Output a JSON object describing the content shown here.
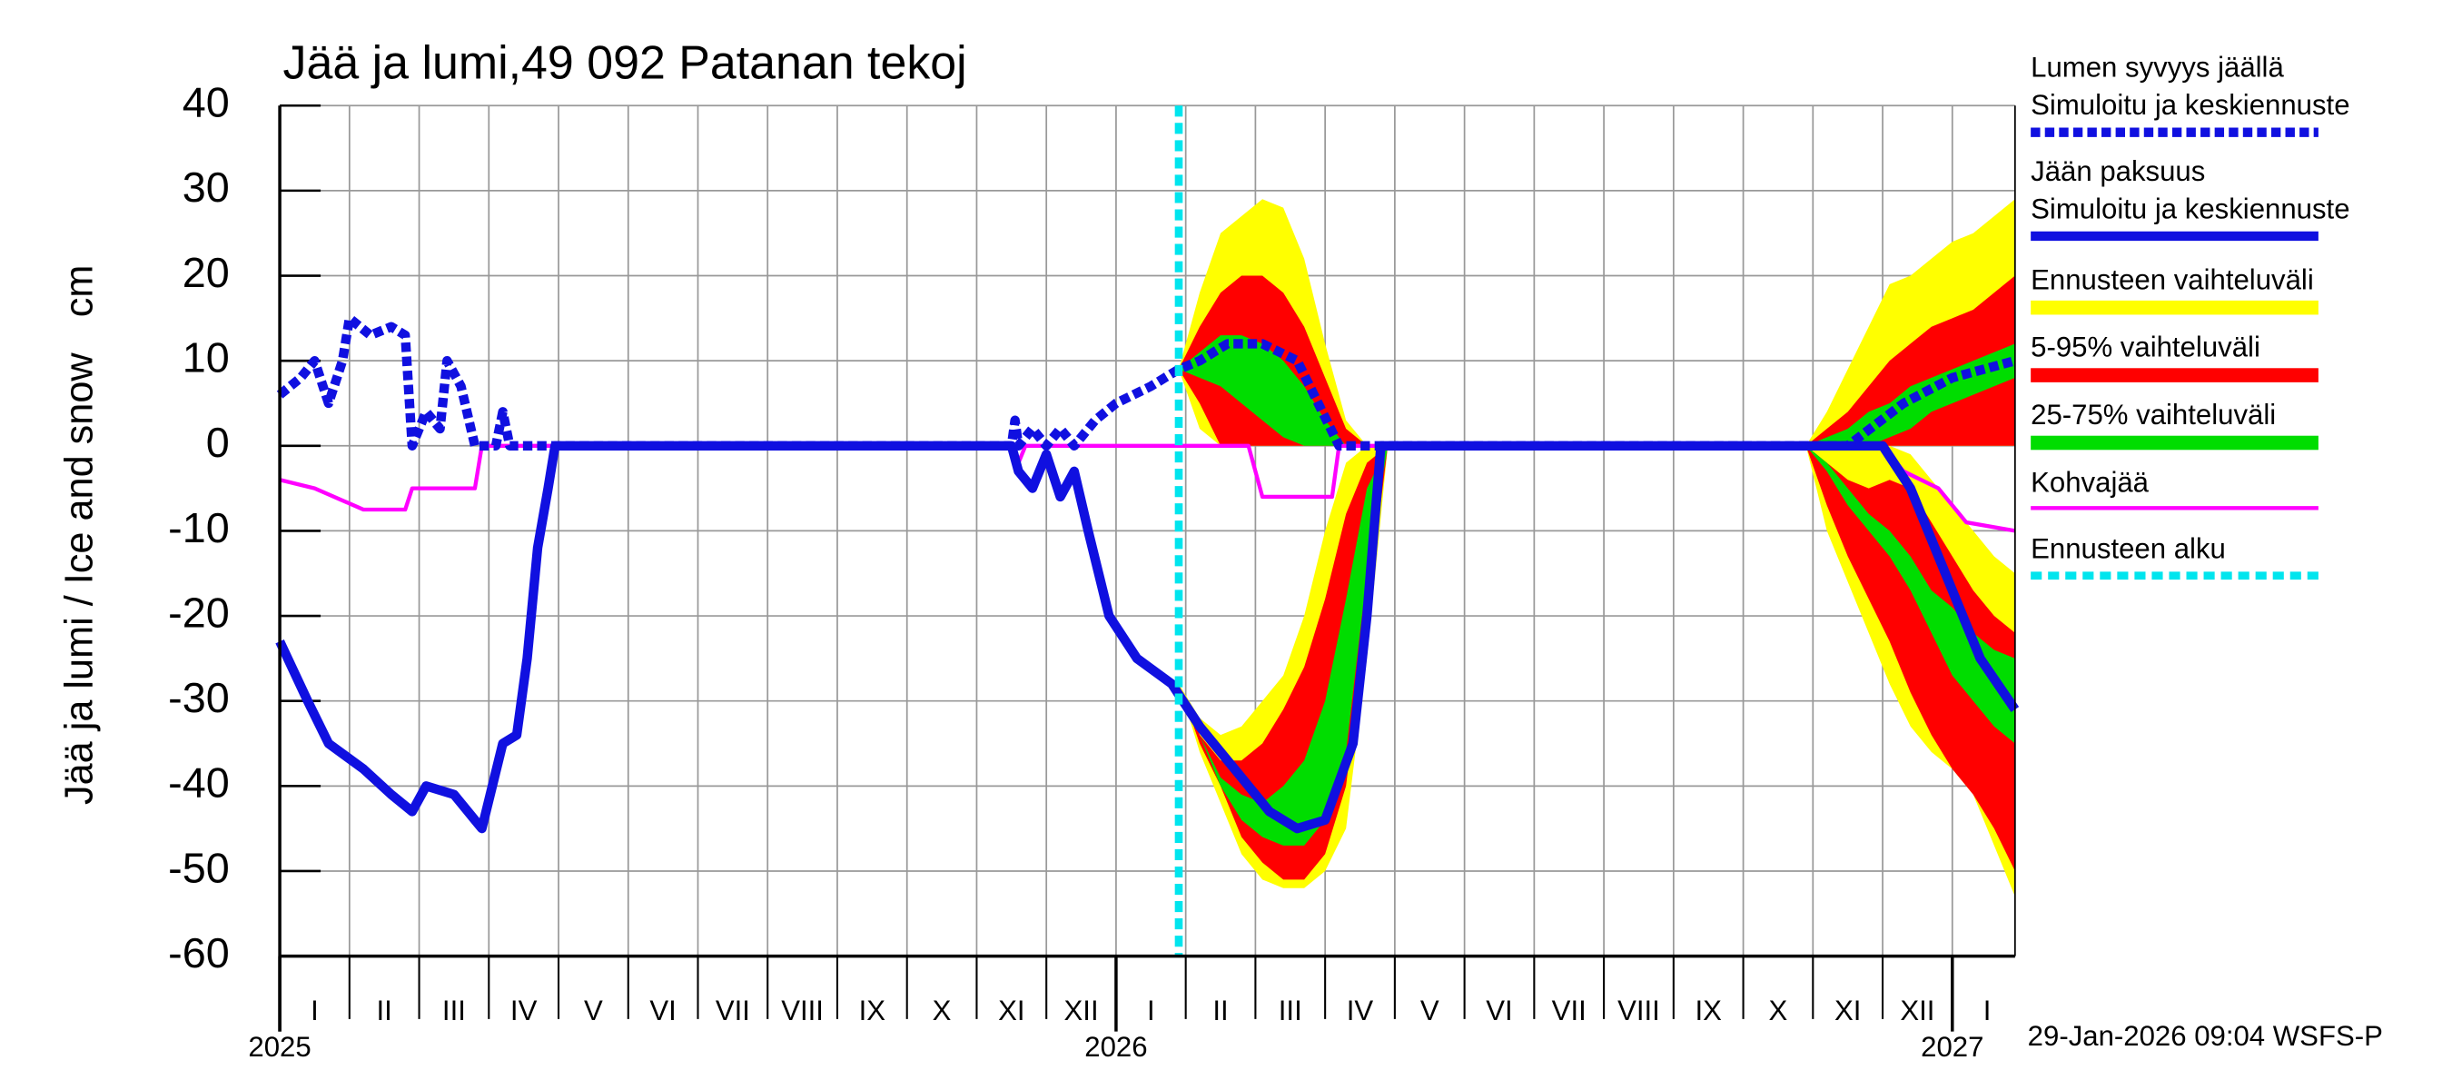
{
  "chart_data": {
    "type": "ice",
    "title": "Jää ja lumi,49 092 Patanan tekoj",
    "ylabel": "Jää ja lumi / Ice and snow",
    "yunit": "cm",
    "timestamp": "29-Jan-2026 09:04 WSFS-P",
    "ylim": [
      -60,
      40
    ],
    "yticks": [
      -60,
      -50,
      -40,
      -30,
      -20,
      -10,
      0,
      10,
      20,
      30,
      40
    ],
    "xlim": [
      0,
      24.9
    ],
    "xticks": [
      0,
      1,
      2,
      3,
      4,
      5,
      6,
      7,
      8,
      9,
      10,
      11,
      12,
      13,
      14,
      15,
      16,
      17,
      18,
      19,
      20,
      21,
      22,
      23,
      24
    ],
    "month_labels": [
      {
        "value": 0.5,
        "label": "I"
      },
      {
        "value": 1.5,
        "label": "II"
      },
      {
        "value": 2.5,
        "label": "III"
      },
      {
        "value": 3.5,
        "label": "IV"
      },
      {
        "value": 4.5,
        "label": "V"
      },
      {
        "value": 5.5,
        "label": "VI"
      },
      {
        "value": 6.5,
        "label": "VII"
      },
      {
        "value": 7.5,
        "label": "VIII"
      },
      {
        "value": 8.5,
        "label": "IX"
      },
      {
        "value": 9.5,
        "label": "X"
      },
      {
        "value": 10.5,
        "label": "XI"
      },
      {
        "value": 11.5,
        "label": "XII"
      },
      {
        "value": 12.5,
        "label": "I"
      },
      {
        "value": 13.5,
        "label": "II"
      },
      {
        "value": 14.5,
        "label": "III"
      },
      {
        "value": 15.5,
        "label": "IV"
      },
      {
        "value": 16.5,
        "label": "V"
      },
      {
        "value": 17.5,
        "label": "VI"
      },
      {
        "value": 18.5,
        "label": "VII"
      },
      {
        "value": 19.5,
        "label": "VIII"
      },
      {
        "value": 20.5,
        "label": "IX"
      },
      {
        "value": 21.5,
        "label": "X"
      },
      {
        "value": 22.5,
        "label": "XI"
      },
      {
        "value": 23.5,
        "label": "XII"
      },
      {
        "value": 24.5,
        "label": "I"
      }
    ],
    "year_labels": [
      {
        "value": 0,
        "label": "2025"
      },
      {
        "value": 12,
        "label": "2026"
      },
      {
        "value": 24,
        "label": "2027"
      }
    ],
    "grid": true,
    "forecast_start": 12.9,
    "forecast_start_label": "Ennusteen alku",
    "forecast_start_color": "#00e5ee",
    "series": [
      {
        "name": "Lumen syvyys jäällä",
        "note": "Simuloitu ja keskiennuste",
        "color": "#1010e0",
        "dash": true,
        "x": [
          0,
          0.3,
          0.5,
          0.7,
          0.9,
          1.0,
          1.3,
          1.6,
          1.8,
          1.9,
          2.1,
          2.3,
          2.4,
          2.6,
          2.8,
          3.1,
          3.2,
          3.3,
          10.5,
          10.55,
          10.6,
          10.8,
          11.0,
          11.2,
          11.4,
          11.7,
          12.0,
          12.5,
          12.9,
          13.2,
          13.6,
          14.1,
          14.6,
          14.9,
          15.2,
          22.5,
          23.3,
          24.0,
          24.9
        ],
        "values": [
          6,
          8,
          10,
          5,
          10,
          15,
          13,
          14,
          13,
          0,
          4,
          2,
          10,
          7,
          0,
          0,
          4,
          0,
          0,
          3,
          0,
          2,
          0,
          2,
          0,
          3,
          5,
          7,
          9,
          10,
          12,
          12,
          10,
          5,
          0,
          0,
          5,
          8,
          10
        ]
      },
      {
        "name": "Jään paksuus",
        "note": "Simuloitu ja keskiennuste",
        "color": "#1010e0",
        "dash": false,
        "x": [
          0,
          0.4,
          0.7,
          1.2,
          1.6,
          1.9,
          2.1,
          2.5,
          2.8,
          2.9,
          3.2,
          3.4,
          3.55,
          3.7,
          3.85,
          3.95,
          10.5,
          10.6,
          10.8,
          11.0,
          11.2,
          11.4,
          11.6,
          11.9,
          12.3,
          12.8,
          13.2,
          13.7,
          14.2,
          14.6,
          15.0,
          15.4,
          15.6,
          15.8,
          23.0,
          23.4,
          23.9,
          24.4,
          24.9
        ],
        "values": [
          -23,
          -30,
          -35,
          -38,
          -41,
          -43,
          -40,
          -41,
          -44,
          -45,
          -35,
          -34,
          -25,
          -12,
          -5,
          0,
          0,
          -3,
          -5,
          -1,
          -6,
          -3,
          -10,
          -20,
          -25,
          -28,
          -33,
          -38,
          -43,
          -45,
          -44,
          -35,
          -20,
          0,
          0,
          -5,
          -15,
          -25,
          -31
        ]
      },
      {
        "name": "Kohvajää",
        "color": "#ff00ff",
        "dash": false,
        "x": [
          0,
          0.5,
          1.2,
          1.8,
          1.9,
          2.8,
          2.9,
          10.5,
          10.6,
          10.7,
          13.9,
          14.1,
          15.1,
          15.2,
          23.0,
          23.3,
          23.8,
          24.2,
          24.9
        ],
        "values": [
          -4,
          -5,
          -7.5,
          -7.5,
          -5,
          -5,
          0,
          0,
          -2,
          0,
          0,
          -6,
          -6,
          0,
          0,
          -3,
          -5,
          -9,
          -10
        ]
      }
    ],
    "band_x": [
      [
        12.9,
        13.2,
        13.5,
        13.8,
        14.1,
        14.4,
        14.7,
        15.0,
        15.3,
        15.6,
        15.9
      ],
      [
        21.9,
        22.2,
        22.5,
        22.8,
        23.1,
        23.4,
        23.7,
        24.0,
        24.3,
        24.6,
        24.9
      ]
    ],
    "bands": [
      {
        "name": "Ennusteen vaihteluväli",
        "color": "#ffff00",
        "periods": [
          {
            "snow": {
              "upper": [
                9,
                18,
                25,
                27,
                29,
                28,
                22,
                12,
                3,
                0,
                0
              ],
              "lower": [
                9,
                2,
                0,
                0,
                0,
                0,
                0,
                0,
                0,
                0,
                0
              ]
            },
            "ice": {
              "upper": [
                -28,
                -32,
                -34,
                -33,
                -30,
                -27,
                -20,
                -10,
                -2,
                0,
                0
              ],
              "lower": [
                -28,
                -36,
                -42,
                -48,
                -51,
                -52,
                -52,
                -50,
                -45,
                -25,
                0
              ]
            }
          },
          {
            "snow": {
              "upper": [
                0,
                4,
                9,
                14,
                19,
                20,
                22,
                24,
                25,
                27,
                29
              ],
              "lower": [
                0,
                0,
                0,
                0,
                0,
                0,
                0,
                0,
                0,
                0,
                0
              ]
            },
            "ice": {
              "upper": [
                0,
                0,
                0,
                0,
                0,
                -1,
                -4,
                -7,
                -10,
                -13,
                -15
              ],
              "lower": [
                0,
                -10,
                -16,
                -22,
                -28,
                -33,
                -36,
                -38,
                -41,
                -47,
                -53
              ]
            }
          }
        ]
      },
      {
        "name": "5-95% vaihteluväli",
        "color": "#ff0000",
        "periods": [
          {
            "snow": {
              "upper": [
                9,
                14,
                18,
                20,
                20,
                18,
                14,
                8,
                2,
                0,
                0
              ],
              "lower": [
                9,
                5,
                0,
                0,
                0,
                0,
                0,
                0,
                0,
                0,
                0
              ]
            },
            "ice": {
              "upper": [
                -28,
                -34,
                -37,
                -37,
                -35,
                -31,
                -26,
                -18,
                -8,
                -2,
                0
              ],
              "lower": [
                -28,
                -35,
                -40,
                -46,
                -49,
                -51,
                -51,
                -48,
                -40,
                -20,
                0
              ]
            }
          },
          {
            "snow": {
              "upper": [
                0,
                2,
                4,
                7,
                10,
                12,
                14,
                15,
                16,
                18,
                20
              ],
              "lower": [
                0,
                0,
                0,
                0,
                0,
                0,
                0,
                0,
                0,
                0,
                0
              ]
            },
            "ice": {
              "upper": [
                0,
                -2,
                -4,
                -5,
                -4,
                -5,
                -9,
                -13,
                -17,
                -20,
                -22
              ],
              "lower": [
                0,
                -7,
                -13,
                -18,
                -23,
                -29,
                -34,
                -38,
                -41,
                -45,
                -50
              ]
            }
          }
        ]
      },
      {
        "name": "25-75% vaihteluväli",
        "color": "#00dd00",
        "periods": [
          {
            "snow": {
              "upper": [
                9,
                11,
                13,
                13,
                12,
                10,
                7,
                3,
                0,
                0,
                0
              ],
              "lower": [
                9,
                8,
                7,
                5,
                3,
                1,
                0,
                0,
                0,
                0,
                0
              ]
            },
            "ice": {
              "upper": [
                -28,
                -34,
                -39,
                -41,
                -42,
                -40,
                -37,
                -30,
                -18,
                -5,
                0
              ],
              "lower": [
                -28,
                -34,
                -40,
                -44,
                -46,
                -47,
                -47,
                -44,
                -36,
                -15,
                0
              ]
            }
          },
          {
            "snow": {
              "upper": [
                0,
                1,
                2,
                4,
                5,
                7,
                8,
                9,
                10,
                11,
                12
              ],
              "lower": [
                0,
                0,
                0,
                0,
                1,
                2,
                4,
                5,
                6,
                7,
                8
              ]
            },
            "ice": {
              "upper": [
                0,
                -2,
                -5,
                -8,
                -10,
                -13,
                -17,
                -19,
                -22,
                -24,
                -25
              ],
              "lower": [
                0,
                -3,
                -7,
                -10,
                -13,
                -17,
                -22,
                -27,
                -30,
                -33,
                -35
              ]
            }
          }
        ]
      }
    ]
  }
}
